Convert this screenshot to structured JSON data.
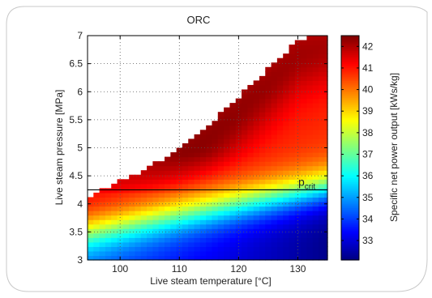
{
  "chart_data": {
    "type": "heatmap",
    "title": "ORC",
    "xlabel": "Live steam temperature [°C]",
    "ylabel": "Live steam pressure [MPa]",
    "colorbar_label": "Specific net power output [kWs/kg]",
    "xlim": [
      94.5,
      135
    ],
    "ylim": [
      3,
      7
    ],
    "x_ticks": [
      "100",
      "110",
      "120",
      "130"
    ],
    "y_ticks": [
      "3",
      "3.5",
      "4",
      "4.5",
      "5",
      "5.5",
      "6",
      "6.5",
      "7"
    ],
    "clim": [
      32.1,
      42.5
    ],
    "colorbar_ticks": [
      "33",
      "34",
      "35",
      "36",
      "37",
      "38",
      "39",
      "40",
      "41",
      "42"
    ],
    "grid": true,
    "colormap": "jet",
    "annotation": {
      "label": "p",
      "subscript": "crit",
      "pressure": 4.25
    },
    "feasibility_boundary": {
      "temperature": [
        94.5,
        100,
        105,
        110,
        115,
        120,
        125,
        130,
        134
      ],
      "max_pressure": [
        4.05,
        4.35,
        4.6,
        4.95,
        5.35,
        5.85,
        6.35,
        6.85,
        7.0
      ]
    },
    "sample_values": {
      "note_free": true,
      "points": [
        {
          "t": 95,
          "p": 3.0,
          "v": 33.5
        },
        {
          "t": 95,
          "p": 3.5,
          "v": 37.0
        },
        {
          "t": 95,
          "p": 4.0,
          "v": 40.0
        },
        {
          "t": 110,
          "p": 3.0,
          "v": 32.5
        },
        {
          "t": 110,
          "p": 3.5,
          "v": 34.5
        },
        {
          "t": 110,
          "p": 4.0,
          "v": 38.0
        },
        {
          "t": 110,
          "p": 4.5,
          "v": 41.0
        },
        {
          "t": 120,
          "p": 5.5,
          "v": 42.3
        },
        {
          "t": 125,
          "p": 6.0,
          "v": 41.5
        },
        {
          "t": 130,
          "p": 3.0,
          "v": 32.2
        },
        {
          "t": 130,
          "p": 4.0,
          "v": 35.5
        },
        {
          "t": 130,
          "p": 5.0,
          "v": 39.5
        },
        {
          "t": 133,
          "p": 6.5,
          "v": 40.8
        },
        {
          "t": 133,
          "p": 7.0,
          "v": 41.5
        }
      ]
    }
  }
}
